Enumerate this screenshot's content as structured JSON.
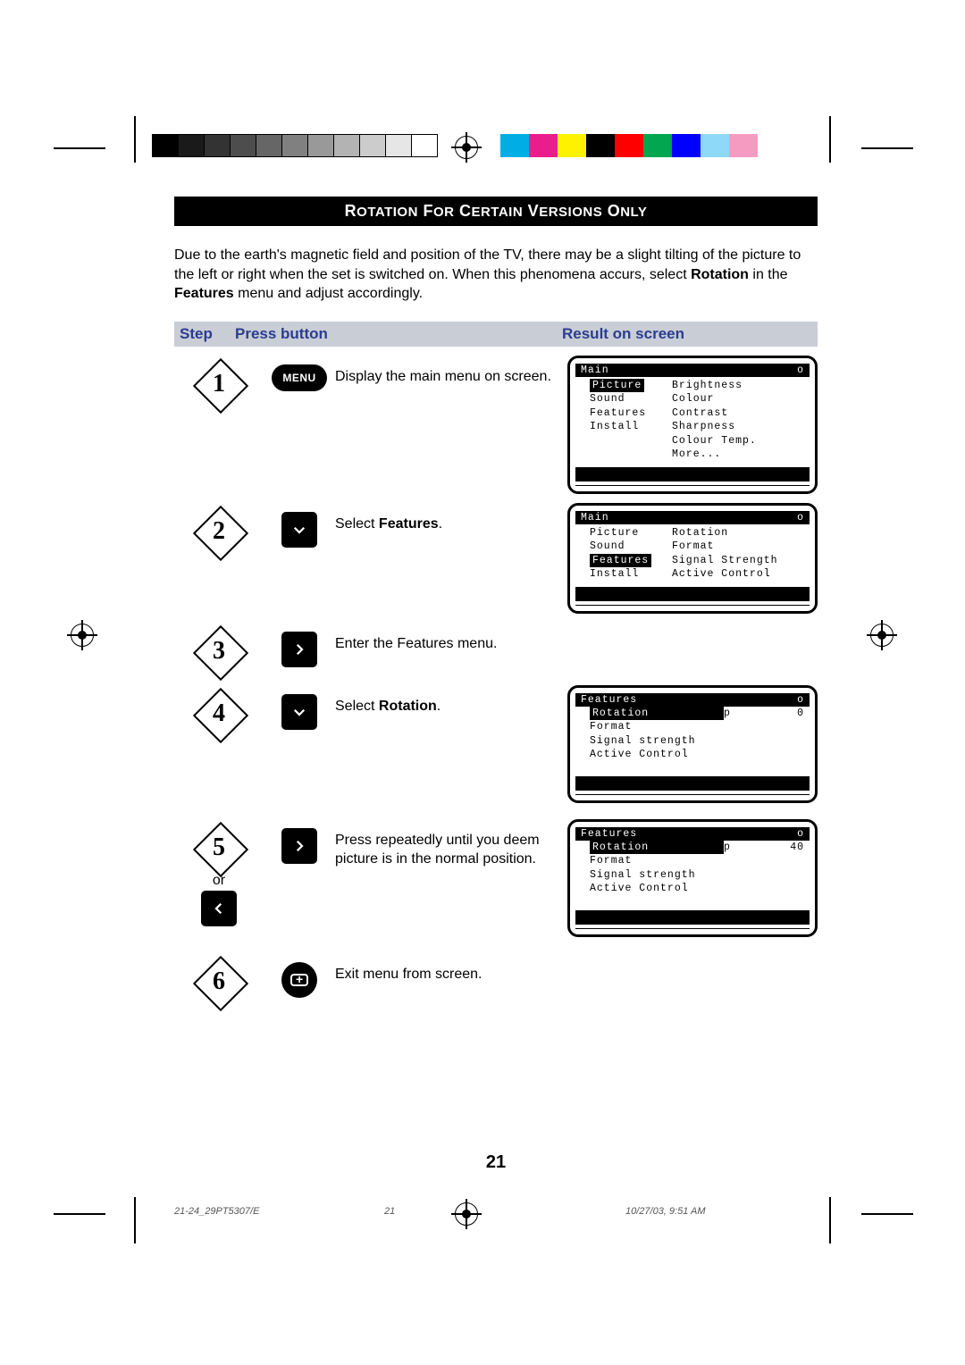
{
  "title": "Rotation For Certain Versions Only",
  "intro_parts": {
    "p1": "Due to the earth's magnetic field and position of the TV, there may be a slight tilting of the picture to the left or right when the set is switched on. When this phenomena accurs, select ",
    "b1": "Rotation",
    "p2": " in the ",
    "b2": "Features",
    "p3": " menu and adjust accordingly."
  },
  "headers": {
    "step": "Step",
    "press": "Press button",
    "result": "Result on screen"
  },
  "steps": {
    "s1": {
      "num": "1",
      "btn": "MENU",
      "desc": "Display the main menu on screen."
    },
    "s2": {
      "num": "2",
      "desc_pre": "Select ",
      "desc_b": "Features",
      "desc_post": "."
    },
    "s3": {
      "num": "3",
      "desc": "Enter the Features menu."
    },
    "s4": {
      "num": "4",
      "desc_pre": "Select ",
      "desc_b": "Rotation",
      "desc_post": "."
    },
    "s5": {
      "num": "5",
      "or": "or",
      "desc": "Press repeatedly until you deem picture is in the normal position."
    },
    "s6": {
      "num": "6",
      "desc": "Exit menu from screen."
    }
  },
  "osd1": {
    "title": "Main",
    "titleR": "o",
    "left": [
      "Picture",
      "Sound",
      "Features",
      "Install"
    ],
    "right": [
      "Brightness",
      "Colour",
      "Contrast",
      "Sharpness",
      "Colour Temp.",
      "More..."
    ],
    "sel_left": "Picture"
  },
  "osd2": {
    "title": "Main",
    "titleR": "o",
    "left": [
      "Picture",
      "Sound",
      "Features",
      "Install"
    ],
    "right": [
      "Rotation",
      "Format",
      "Signal Strength",
      "Active Control"
    ],
    "sel_left": "Features"
  },
  "osd3": {
    "title": "Features",
    "titleR": "o",
    "rows": [
      {
        "l": "Rotation",
        "m": "p",
        "r": "0",
        "sel": true
      },
      {
        "l": "Format",
        "m": "",
        "r": ""
      },
      {
        "l": "Signal strength",
        "m": "",
        "r": ""
      },
      {
        "l": "Active Control",
        "m": "",
        "r": ""
      }
    ]
  },
  "osd4": {
    "title": "Features",
    "titleR": "o",
    "rows": [
      {
        "l": "Rotation",
        "m": "p",
        "r": "40",
        "sel": true
      },
      {
        "l": "Format",
        "m": "",
        "r": ""
      },
      {
        "l": "Signal strength",
        "m": "",
        "r": ""
      },
      {
        "l": "Active Control",
        "m": "",
        "r": ""
      }
    ]
  },
  "page_number": "21",
  "footer": {
    "file": "21-24_29PT5307/E",
    "page": "21",
    "date": "10/27/03, 9:51 AM"
  },
  "gray_swatches": [
    "#000000",
    "#1a1a1a",
    "#333333",
    "#4d4d4d",
    "#666666",
    "#808080",
    "#999999",
    "#b3b3b3",
    "#cccccc",
    "#e6e6e6",
    "#ffffff"
  ],
  "color_swatches": [
    "#00aee6",
    "#e91e8c",
    "#fff200",
    "#000000",
    "#ff0000",
    "#00a650",
    "#0000ff",
    "#8ed8f8",
    "#f59bc1",
    "#ffffff"
  ]
}
